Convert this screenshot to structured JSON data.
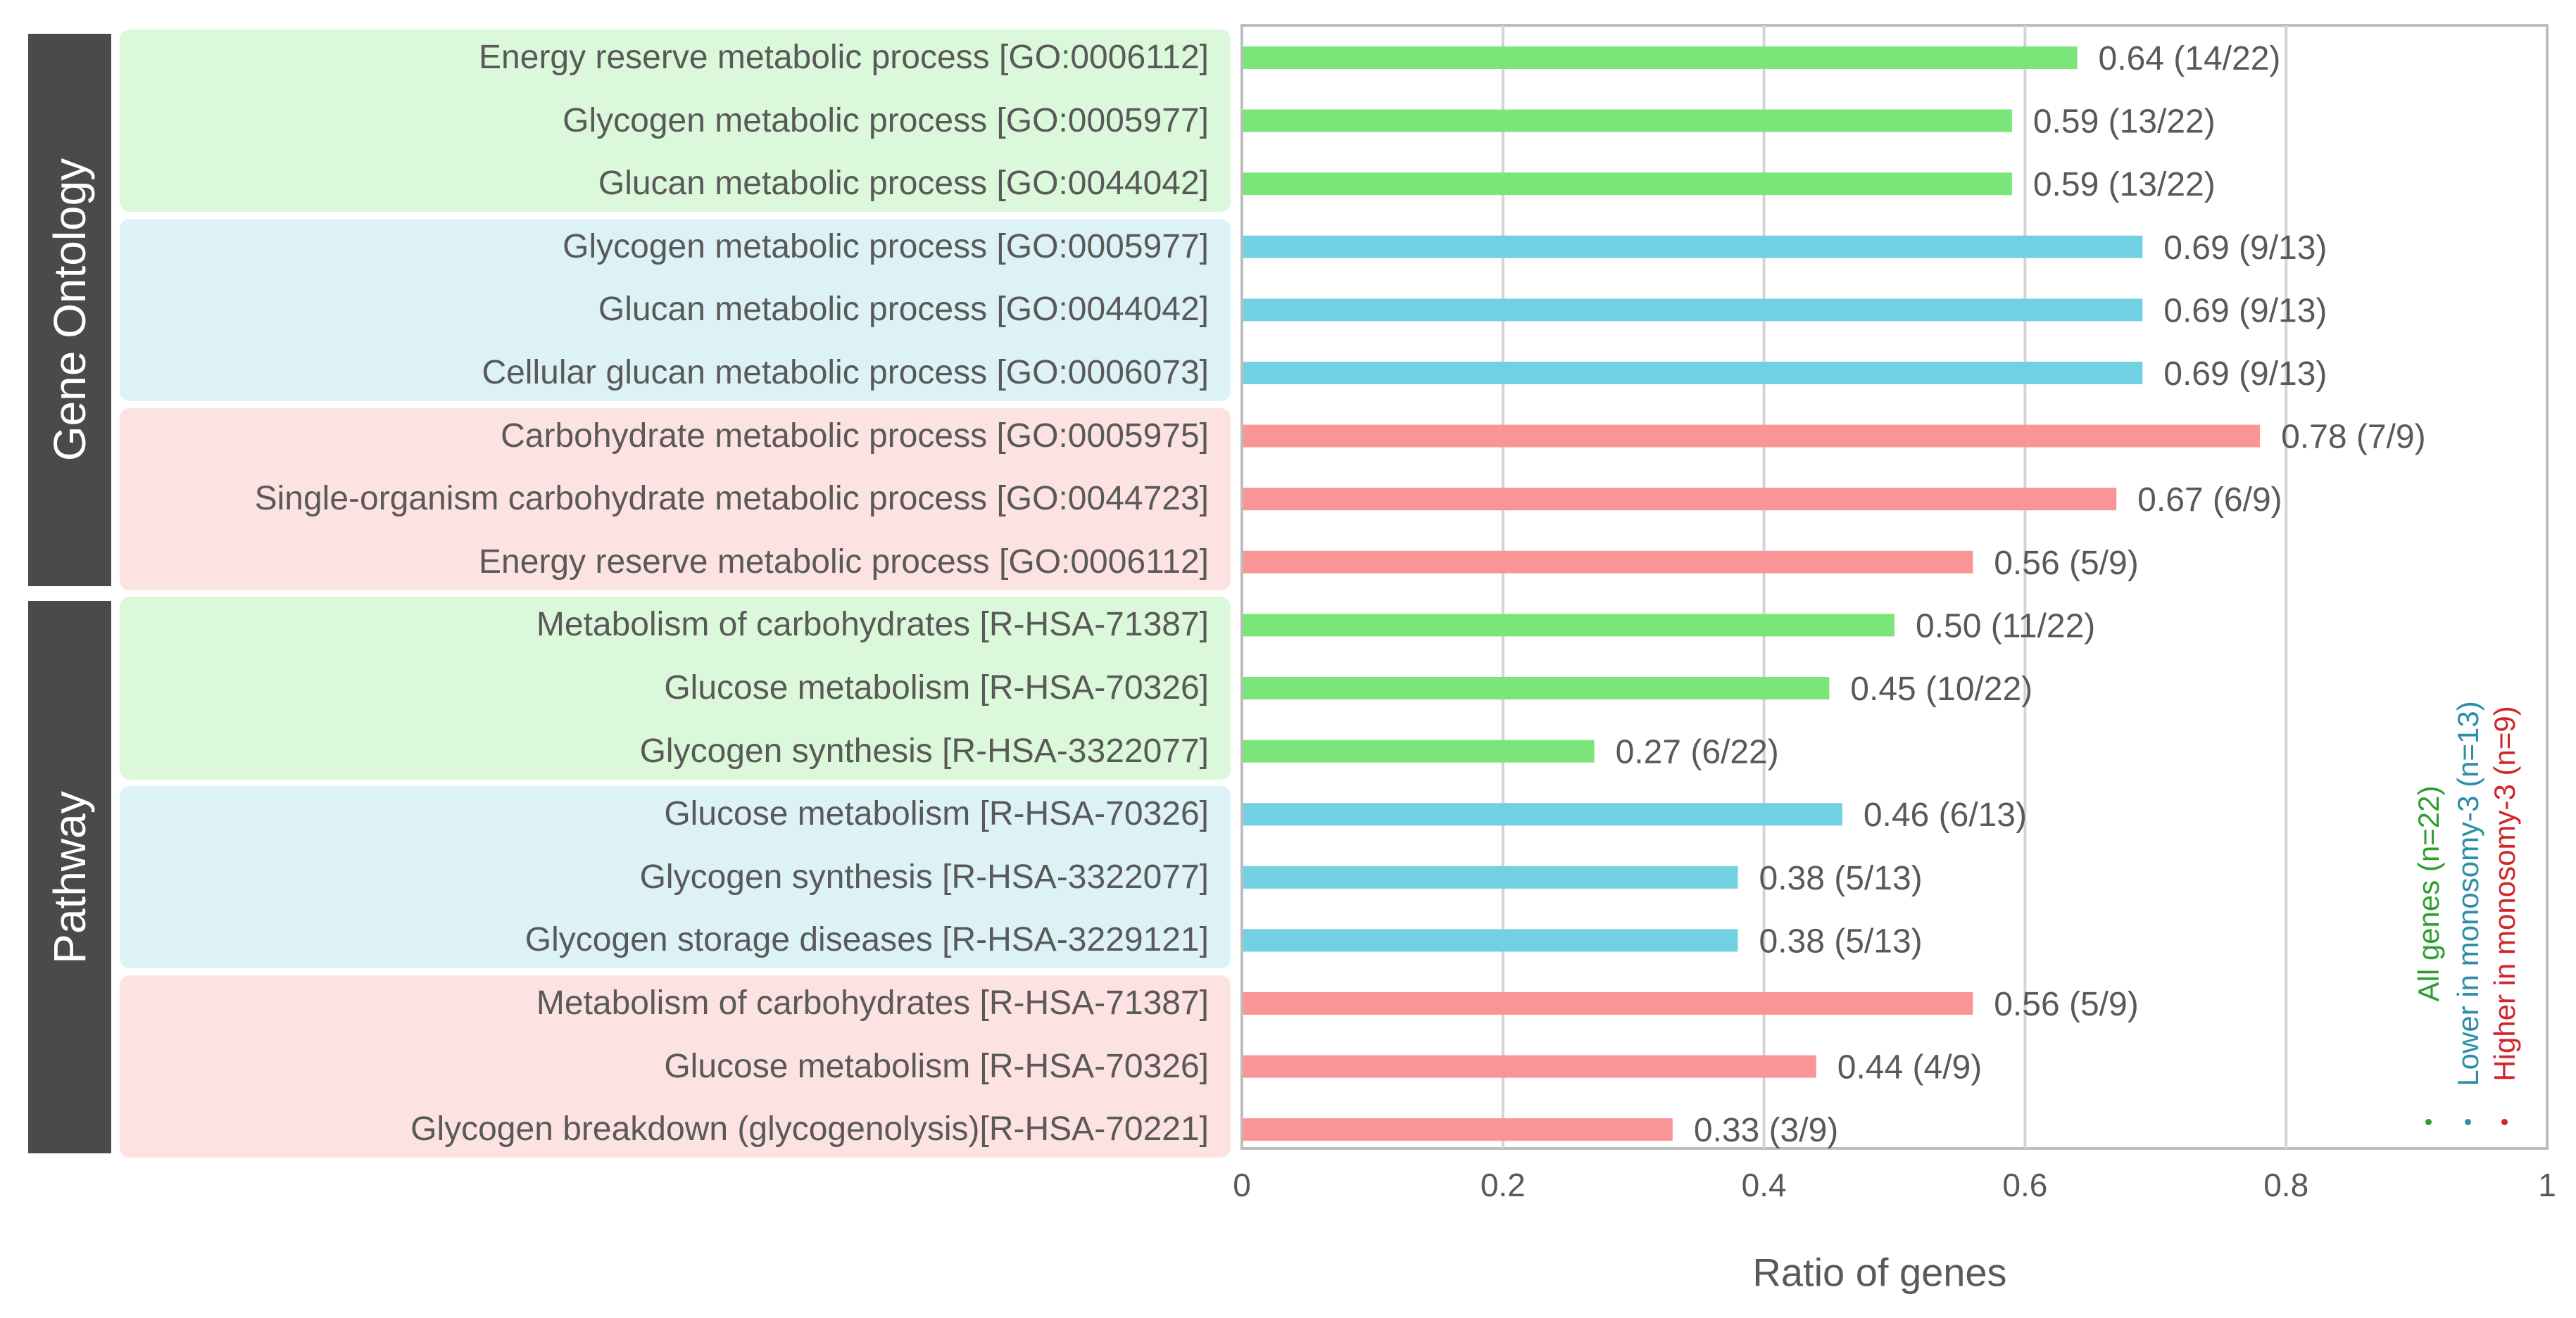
{
  "colors": {
    "all": "#7ae67a",
    "lower": "#72d0e3",
    "higher": "#fa9597",
    "bg_all": "#dbf8db",
    "bg_lower": "#dcf2f6",
    "bg_higher": "#fde2e2",
    "legend_all": "#2e9e2e",
    "legend_lower": "#2b8fa8",
    "legend_higher": "#d0262a",
    "section": "#4a4a4a"
  },
  "sections": [
    {
      "label": "Gene Ontology"
    },
    {
      "label": "Pathway"
    }
  ],
  "legend": [
    {
      "label": "All genes (n=22)",
      "color_key": "legend_all"
    },
    {
      "label": "Lower in monosomy-3 (n=13)",
      "color_key": "legend_lower"
    },
    {
      "label": "Higher in monosomy-3 (n=9)",
      "color_key": "legend_higher"
    }
  ],
  "chart_data": {
    "type": "bar",
    "orientation": "horizontal",
    "xlabel": "Ratio of genes",
    "xlim": [
      0,
      1
    ],
    "xticks": [
      0,
      0.2,
      0.4,
      0.6,
      0.8,
      1
    ],
    "xtick_labels": [
      "0",
      "0.2",
      "0.4",
      "0.6",
      "0.8",
      "1"
    ],
    "grid": true,
    "legend_position": "right, vertical text",
    "rows": [
      {
        "section": "Gene Ontology",
        "group": "all",
        "label": "Energy reserve metabolic process [GO:0006112]",
        "value": 0.64,
        "value_label": "0.64 (14/22)"
      },
      {
        "section": "Gene Ontology",
        "group": "all",
        "label": "Glycogen metabolic process [GO:0005977]",
        "value": 0.59,
        "value_label": "0.59 (13/22)"
      },
      {
        "section": "Gene Ontology",
        "group": "all",
        "label": "Glucan metabolic process [GO:0044042]",
        "value": 0.59,
        "value_label": "0.59 (13/22)"
      },
      {
        "section": "Gene Ontology",
        "group": "lower",
        "label": "Glycogen metabolic process [GO:0005977]",
        "value": 0.69,
        "value_label": "0.69 (9/13)"
      },
      {
        "section": "Gene Ontology",
        "group": "lower",
        "label": "Glucan metabolic process [GO:0044042]",
        "value": 0.69,
        "value_label": "0.69 (9/13)"
      },
      {
        "section": "Gene Ontology",
        "group": "lower",
        "label": "Cellular glucan metabolic process [GO:0006073]",
        "value": 0.69,
        "value_label": "0.69 (9/13)"
      },
      {
        "section": "Gene Ontology",
        "group": "higher",
        "label": "Carbohydrate metabolic process [GO:0005975]",
        "value": 0.78,
        "value_label": "0.78 (7/9)"
      },
      {
        "section": "Gene Ontology",
        "group": "higher",
        "label": "Single-organism carbohydrate metabolic process [GO:0044723]",
        "value": 0.67,
        "value_label": "0.67 (6/9)"
      },
      {
        "section": "Gene Ontology",
        "group": "higher",
        "label": "Energy reserve metabolic process [GO:0006112]",
        "value": 0.56,
        "value_label": "0.56 (5/9)"
      },
      {
        "section": "Pathway",
        "group": "all",
        "label": "Metabolism of carbohydrates [R-HSA-71387]",
        "value": 0.5,
        "value_label": "0.50 (11/22)"
      },
      {
        "section": "Pathway",
        "group": "all",
        "label": "Glucose metabolism [R-HSA-70326]",
        "value": 0.45,
        "value_label": "0.45 (10/22)"
      },
      {
        "section": "Pathway",
        "group": "all",
        "label": "Glycogen synthesis [R-HSA-3322077]",
        "value": 0.27,
        "value_label": "0.27 (6/22)"
      },
      {
        "section": "Pathway",
        "group": "lower",
        "label": "Glucose metabolism [R-HSA-70326]",
        "value": 0.46,
        "value_label": "0.46 (6/13)"
      },
      {
        "section": "Pathway",
        "group": "lower",
        "label": "Glycogen synthesis [R-HSA-3322077]",
        "value": 0.38,
        "value_label": "0.38 (5/13)"
      },
      {
        "section": "Pathway",
        "group": "lower",
        "label": "Glycogen storage diseases [R-HSA-3229121]",
        "value": 0.38,
        "value_label": "0.38 (5/13)"
      },
      {
        "section": "Pathway",
        "group": "higher",
        "label": "Metabolism of carbohydrates [R-HSA-71387]",
        "value": 0.56,
        "value_label": "0.56 (5/9)"
      },
      {
        "section": "Pathway",
        "group": "higher",
        "label": "Glucose metabolism [R-HSA-70326]",
        "value": 0.44,
        "value_label": "0.44 (4/9)"
      },
      {
        "section": "Pathway",
        "group": "higher",
        "label": "Glycogen breakdown (glycogenolysis)[R-HSA-70221]",
        "value": 0.33,
        "value_label": "0.33 (3/9)"
      }
    ]
  }
}
